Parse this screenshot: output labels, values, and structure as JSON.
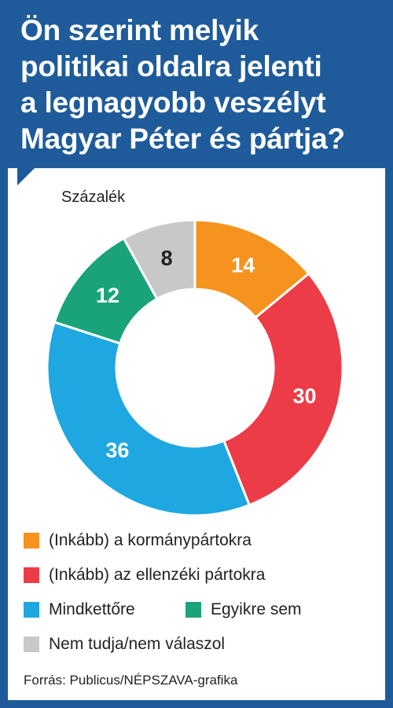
{
  "header": {
    "title_lines": [
      "Ön szerint melyik",
      "politikai oldalra jelenti",
      "a legnagyobb veszélyt",
      "Magyar Péter és pártja?"
    ]
  },
  "unit_label": "Százalék",
  "source": "Forrás: Publicus/NÉPSZAVA-grafika",
  "colors": {
    "frame": "#1f5b9a",
    "orange": "#f6921e",
    "red": "#ec3c47",
    "blue": "#1ea7e1",
    "green": "#1aa37a",
    "gray": "#c8c8c8"
  },
  "chart_data": {
    "type": "pie",
    "donut": true,
    "unit": "Százalék",
    "categories": [
      "(Inkább) a kormánypártokra",
      "(Inkább) az ellenzéki pártokra",
      "Mindkettőre",
      "Egyikre sem",
      "Nem tudja/nem válaszol"
    ],
    "values": [
      14,
      30,
      36,
      12,
      8
    ],
    "labels": [
      "14",
      "30",
      "36",
      "12",
      "8"
    ],
    "colors": [
      "#f6921e",
      "#ec3c47",
      "#1ea7e1",
      "#1aa37a",
      "#c8c8c8"
    ],
    "label_colors": [
      "#ffffff",
      "#ffffff",
      "#ffffff",
      "#ffffff",
      "#222222"
    ],
    "start": "top",
    "direction": "clockwise"
  },
  "legend": [
    {
      "label": "(Inkább) a kormánypártokra",
      "color": "#f6921e"
    },
    {
      "label": "(Inkább) az ellenzéki pártokra",
      "color": "#ec3c47"
    },
    {
      "label": "Mindkettőre",
      "color": "#1ea7e1"
    },
    {
      "label": "Egyikre sem",
      "color": "#1aa37a"
    },
    {
      "label": "Nem tudja/nem válaszol",
      "color": "#c8c8c8"
    }
  ]
}
